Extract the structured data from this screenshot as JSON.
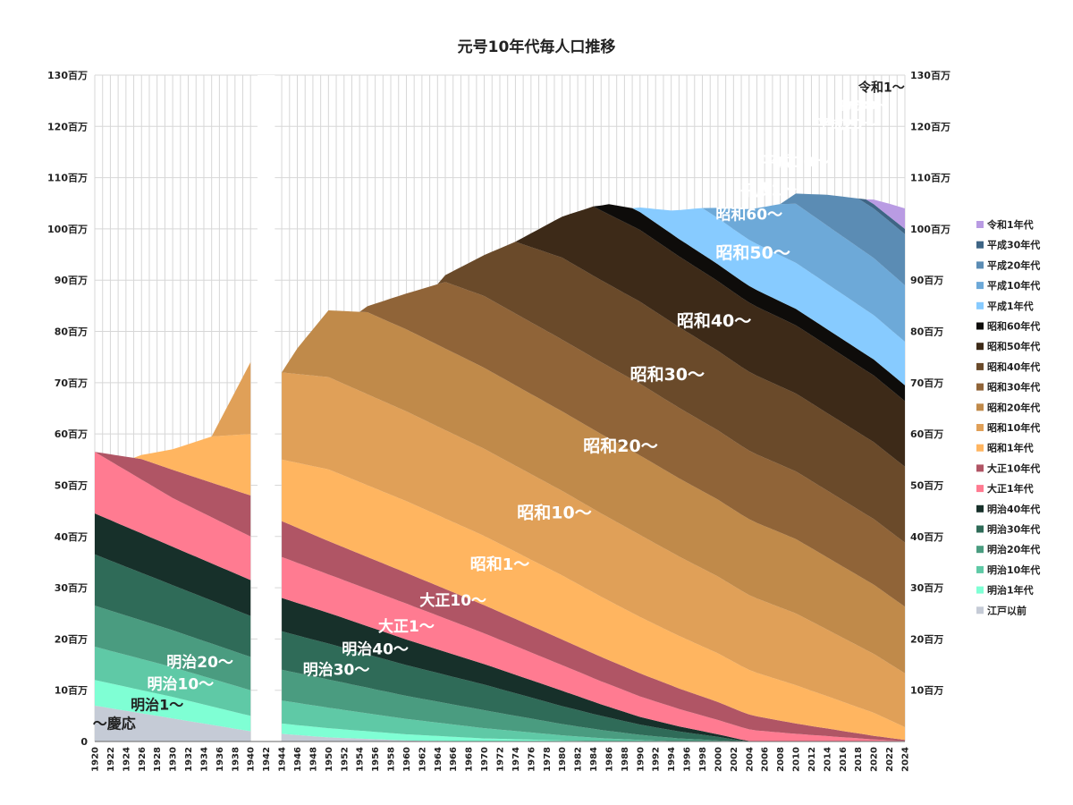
{
  "chart_data": {
    "type": "area",
    "title": "元号10年代毎人口推移",
    "xlabel": "",
    "ylabel": "",
    "xlim": [
      1920,
      2024
    ],
    "ylim": [
      0,
      130
    ],
    "y_unit": "百万",
    "y_ticks": [
      "0",
      "10百万",
      "20百万",
      "30百万",
      "40百万",
      "50百万",
      "60百万",
      "70百万",
      "80百万",
      "90百万",
      "100百万",
      "110百万",
      "120百万",
      "130百万"
    ],
    "x_ticks": [
      "1920",
      "1922",
      "1924",
      "1926",
      "1928",
      "1930",
      "1932",
      "1934",
      "1936",
      "1938",
      "1940",
      "1942",
      "1944",
      "1946",
      "1948",
      "1950",
      "1952",
      "1954",
      "1956",
      "1958",
      "1960",
      "1962",
      "1964",
      "1966",
      "1968",
      "1970",
      "1972",
      "1974",
      "1976",
      "1978",
      "1980",
      "1982",
      "1984",
      "1986",
      "1988",
      "1990",
      "1992",
      "1994",
      "1996",
      "1998",
      "2000",
      "2002",
      "2004",
      "2006",
      "2008",
      "2010",
      "2012",
      "2014",
      "2016",
      "2018",
      "2020",
      "2022",
      "2024"
    ],
    "grid": true,
    "legend_position": "right",
    "gap_years": [
      1941,
      1942,
      1943
    ],
    "series": [
      {
        "name": "江戸以前",
        "color": "#c5cbd6",
        "points": [
          [
            1920,
            7
          ],
          [
            1930,
            4.5
          ],
          [
            1940,
            2
          ],
          [
            1941,
            0
          ],
          [
            1944,
            1.5
          ],
          [
            1950,
            0.8
          ],
          [
            1960,
            0.2
          ],
          [
            1970,
            0
          ]
        ]
      },
      {
        "name": "明治1年代",
        "color": "#7fffd4",
        "points": [
          [
            1920,
            5
          ],
          [
            1930,
            4.2
          ],
          [
            1940,
            3
          ],
          [
            1941,
            0
          ],
          [
            1944,
            2
          ],
          [
            1950,
            1.8
          ],
          [
            1960,
            1.2
          ],
          [
            1970,
            0.6
          ],
          [
            1980,
            0.2
          ],
          [
            1985,
            0
          ]
        ]
      },
      {
        "name": "明治10年代",
        "color": "#5fc9a6",
        "points": [
          [
            1920,
            6.5
          ],
          [
            1930,
            5.8
          ],
          [
            1940,
            5
          ],
          [
            1941,
            0
          ],
          [
            1944,
            4.5
          ],
          [
            1950,
            4
          ],
          [
            1960,
            3
          ],
          [
            1970,
            2
          ],
          [
            1980,
            1
          ],
          [
            1990,
            0.3
          ],
          [
            1995,
            0
          ]
        ]
      },
      {
        "name": "明治20年代",
        "color": "#4a9c80",
        "points": [
          [
            1920,
            8
          ],
          [
            1930,
            7.2
          ],
          [
            1940,
            6.5
          ],
          [
            1941,
            0
          ],
          [
            1944,
            6
          ],
          [
            1950,
            5.5
          ],
          [
            1960,
            4.5
          ],
          [
            1970,
            3.5
          ],
          [
            1980,
            2.2
          ],
          [
            1990,
            1
          ],
          [
            2000,
            0.2
          ],
          [
            2003,
            0
          ]
        ]
      },
      {
        "name": "明治30年代",
        "color": "#2f6b58",
        "points": [
          [
            1920,
            10
          ],
          [
            1930,
            8.8
          ],
          [
            1940,
            8
          ],
          [
            1941,
            0
          ],
          [
            1944,
            7.5
          ],
          [
            1950,
            7
          ],
          [
            1960,
            6
          ],
          [
            1970,
            5
          ],
          [
            1980,
            3.5
          ],
          [
            1990,
            2
          ],
          [
            2000,
            0.7
          ],
          [
            2004,
            0
          ]
        ]
      },
      {
        "name": "明治40年代",
        "color": "#17302a",
        "points": [
          [
            1920,
            8
          ],
          [
            1930,
            7.5
          ],
          [
            1940,
            7
          ],
          [
            1941,
            0
          ],
          [
            1944,
            6.5
          ],
          [
            1950,
            6
          ],
          [
            1960,
            5
          ],
          [
            1970,
            4
          ],
          [
            1980,
            3
          ],
          [
            1990,
            1.5
          ],
          [
            2000,
            0.5
          ],
          [
            2005,
            0
          ]
        ]
      },
      {
        "name": "大正1年代",
        "color": "#ff7b91",
        "points": [
          [
            1920,
            12
          ],
          [
            1930,
            9.5
          ],
          [
            1940,
            8.5
          ],
          [
            1941,
            0
          ],
          [
            1944,
            8
          ],
          [
            1950,
            7.5
          ],
          [
            1960,
            7
          ],
          [
            1970,
            6
          ],
          [
            1980,
            5
          ],
          [
            1990,
            4
          ],
          [
            2000,
            2.8
          ],
          [
            2010,
            1.5
          ],
          [
            2020,
            0.4
          ],
          [
            2024,
            0.1
          ]
        ]
      },
      {
        "name": "大正10年代",
        "color": "#b05565",
        "points": [
          [
            1920,
            0
          ],
          [
            1926,
            4
          ],
          [
            1930,
            5.5
          ],
          [
            1940,
            8
          ],
          [
            1941,
            0
          ],
          [
            1944,
            7
          ],
          [
            1950,
            6.5
          ],
          [
            1960,
            6
          ],
          [
            1970,
            5.5
          ],
          [
            1980,
            5
          ],
          [
            1990,
            4.5
          ],
          [
            2000,
            3.5
          ],
          [
            2010,
            2
          ],
          [
            2020,
            0.7
          ],
          [
            2024,
            0.2
          ]
        ]
      },
      {
        "name": "昭和1年代",
        "color": "#ffb560",
        "points": [
          [
            1925,
            0
          ],
          [
            1930,
            4
          ],
          [
            1935,
            9
          ],
          [
            1940,
            12
          ],
          [
            1941,
            0
          ],
          [
            1944,
            12
          ],
          [
            1950,
            14
          ],
          [
            1960,
            14
          ],
          [
            1970,
            13.5
          ],
          [
            1980,
            12.5
          ],
          [
            1990,
            11
          ],
          [
            2000,
            9.5
          ],
          [
            2010,
            7.5
          ],
          [
            2020,
            4.5
          ],
          [
            2024,
            2.5
          ]
        ]
      },
      {
        "name": "昭和10年代",
        "color": "#e0a058",
        "points": [
          [
            1935,
            0
          ],
          [
            1940,
            14
          ],
          [
            1941,
            0
          ],
          [
            1944,
            17
          ],
          [
            1950,
            18
          ],
          [
            1960,
            17.5
          ],
          [
            1970,
            17
          ],
          [
            1980,
            16.5
          ],
          [
            1990,
            16
          ],
          [
            2000,
            15
          ],
          [
            2010,
            14
          ],
          [
            2020,
            11.5
          ],
          [
            2024,
            10.5
          ]
        ]
      },
      {
        "name": "昭和20年代",
        "color": "#c08a4a",
        "points": [
          [
            1944,
            0
          ],
          [
            1946,
            5
          ],
          [
            1950,
            13
          ],
          [
            1955,
            16
          ],
          [
            1960,
            16
          ],
          [
            1970,
            15.8
          ],
          [
            1980,
            15.5
          ],
          [
            1990,
            15.5
          ],
          [
            2000,
            15
          ],
          [
            2010,
            14.5
          ],
          [
            2020,
            13.5
          ],
          [
            2024,
            13
          ]
        ]
      },
      {
        "name": "昭和30年代",
        "color": "#906438",
        "points": [
          [
            1954,
            0
          ],
          [
            1960,
            7
          ],
          [
            1965,
            13
          ],
          [
            1970,
            14
          ],
          [
            1980,
            14
          ],
          [
            1990,
            14
          ],
          [
            2000,
            13.5
          ],
          [
            2010,
            13.2
          ],
          [
            2020,
            12.8
          ],
          [
            2024,
            12.5
          ]
        ]
      },
      {
        "name": "昭和40年代",
        "color": "#6a4a2a",
        "points": [
          [
            1964,
            0
          ],
          [
            1970,
            8
          ],
          [
            1974,
            14
          ],
          [
            1980,
            16
          ],
          [
            1990,
            16
          ],
          [
            2000,
            15.5
          ],
          [
            2010,
            15.2
          ],
          [
            2020,
            15
          ],
          [
            2024,
            14.8
          ]
        ]
      },
      {
        "name": "昭和50年代",
        "color": "#3d2a18",
        "points": [
          [
            1974,
            0
          ],
          [
            1980,
            8
          ],
          [
            1984,
            13.5
          ],
          [
            1990,
            14
          ],
          [
            2000,
            13.6
          ],
          [
            2010,
            13.3
          ],
          [
            2020,
            13
          ],
          [
            2024,
            12.8
          ]
        ]
      },
      {
        "name": "昭和60年代",
        "color": "#0e0c0a",
        "points": [
          [
            1984,
            0
          ],
          [
            1986,
            2
          ],
          [
            1989,
            3.5
          ],
          [
            2000,
            3.3
          ],
          [
            2010,
            3.2
          ],
          [
            2024,
            3.1
          ]
        ]
      },
      {
        "name": "平成1年代",
        "color": "#87cbff",
        "points": [
          [
            1989,
            0
          ],
          [
            1994,
            4.5
          ],
          [
            1998,
            9
          ],
          [
            2010,
            9
          ],
          [
            2024,
            8.5
          ]
        ]
      },
      {
        "name": "平成10年代",
        "color": "#6da9d8",
        "points": [
          [
            1998,
            0
          ],
          [
            2000,
            2
          ],
          [
            2004,
            6
          ],
          [
            2008,
            10
          ],
          [
            2010,
            11.5
          ],
          [
            2024,
            11
          ]
        ]
      },
      {
        "name": "平成20年代",
        "color": "#5b8cb4",
        "points": [
          [
            2008,
            0
          ],
          [
            2010,
            2
          ],
          [
            2014,
            6
          ],
          [
            2018,
            9.5
          ],
          [
            2024,
            10
          ]
        ]
      },
      {
        "name": "平成30年代",
        "color": "#3e6585",
        "points": [
          [
            2018,
            0
          ],
          [
            2019,
            0.8
          ],
          [
            2024,
            1
          ]
        ]
      },
      {
        "name": "令和1年代",
        "color": "#b99be3",
        "points": [
          [
            2019,
            0
          ],
          [
            2020,
            0.9
          ],
          [
            2022,
            2.5
          ],
          [
            2024,
            4
          ]
        ]
      }
    ],
    "annotations": [
      {
        "text": "〜慶応",
        "x": 1922.5,
        "y": 2.5,
        "color": "#222222",
        "size": 16
      },
      {
        "text": "明治1〜",
        "x": 1928,
        "y": 6.2,
        "color": "#222222",
        "size": 16
      },
      {
        "text": "明治10〜",
        "x": 1931,
        "y": 10.2,
        "color": "#ffffff",
        "size": 17
      },
      {
        "text": "明治20〜",
        "x": 1933.5,
        "y": 14.5,
        "color": "#ffffff",
        "size": 17
      },
      {
        "text": "明治30〜",
        "x": 1951,
        "y": 13,
        "color": "#ffffff",
        "size": 17
      },
      {
        "text": "明治40〜",
        "x": 1956,
        "y": 17,
        "color": "#ffffff",
        "size": 17
      },
      {
        "text": "大正1〜",
        "x": 1960,
        "y": 21.5,
        "color": "#ffffff",
        "size": 17
      },
      {
        "text": "大正10〜",
        "x": 1966,
        "y": 26.5,
        "color": "#ffffff",
        "size": 17
      },
      {
        "text": "昭和1〜",
        "x": 1972,
        "y": 33.5,
        "color": "#ffffff",
        "size": 18
      },
      {
        "text": "昭和10〜",
        "x": 1979,
        "y": 43.5,
        "color": "#ffffff",
        "size": 19
      },
      {
        "text": "昭和20〜",
        "x": 1987.5,
        "y": 56.5,
        "color": "#ffffff",
        "size": 19
      },
      {
        "text": "昭和30〜",
        "x": 1993.5,
        "y": 70.5,
        "color": "#ffffff",
        "size": 19
      },
      {
        "text": "昭和40〜",
        "x": 1999.5,
        "y": 81,
        "color": "#ffffff",
        "size": 19
      },
      {
        "text": "昭和50〜",
        "x": 2004.5,
        "y": 94.2,
        "color": "#ffffff",
        "size": 19
      },
      {
        "text": "昭和60〜",
        "x": 2004,
        "y": 101.8,
        "color": "#ffffff",
        "size": 17
      },
      {
        "text": "平成1〜",
        "x": 2006.5,
        "y": 106.5,
        "color": "#ffffff",
        "size": 17
      },
      {
        "text": "平成10〜",
        "x": 2010,
        "y": 112,
        "color": "#ffffff",
        "size": 17
      },
      {
        "text": "平成20〜",
        "x": 2016.5,
        "y": 119.5,
        "color": "#ffffff",
        "size": 15
      },
      {
        "text": "平成30〜",
        "x": 2018.5,
        "y": 123.3,
        "color": "#ffffff",
        "size": 13
      },
      {
        "text": "令和1〜",
        "x": 2021,
        "y": 126.8,
        "color": "#222222",
        "size": 14
      }
    ]
  }
}
